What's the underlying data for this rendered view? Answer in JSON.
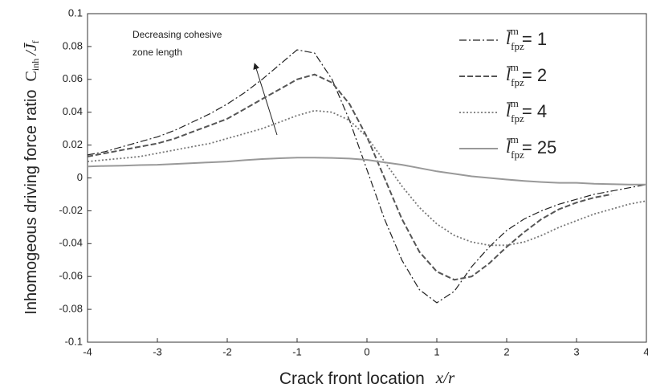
{
  "chart_data": {
    "type": "line",
    "ylabel": "Inhomogeous driving force ratio",
    "ylabel_formula": {
      "base1": "C",
      "sub1": "inh",
      "base2": "/J̄",
      "sub2": "f"
    },
    "xlabel": "Crack front location",
    "xlabel_var": "x/r",
    "annotation": [
      "Decreasing cohesive",
      "zone length"
    ],
    "legend_symbol": {
      "base": "l̄",
      "sub": "fpz",
      "sup": "m"
    },
    "x": [
      -4,
      -3.75,
      -3.5,
      -3.25,
      -3,
      -2.75,
      -2.5,
      -2.25,
      -2,
      -1.75,
      -1.5,
      -1.25,
      -1,
      -0.75,
      -0.5,
      -0.25,
      0,
      0.25,
      0.5,
      0.75,
      1,
      1.25,
      1.5,
      1.75,
      2,
      2.25,
      2.5,
      2.75,
      3,
      3.25,
      3.5,
      3.75,
      4
    ],
    "series": [
      {
        "name": "= 1",
        "color": "#222222",
        "line_style": "dashdot",
        "values": [
          0.014,
          0.016,
          0.019,
          0.022,
          0.025,
          0.029,
          0.034,
          0.039,
          0.045,
          0.052,
          0.06,
          0.069,
          0.078,
          0.076,
          0.06,
          0.035,
          0.005,
          -0.025,
          -0.05,
          -0.068,
          -0.076,
          -0.069,
          -0.054,
          -0.042,
          -0.032,
          -0.025,
          -0.02,
          -0.016,
          -0.013,
          -0.01,
          -0.008,
          -0.006,
          -0.004
        ]
      },
      {
        "name": "= 2",
        "color": "#555555",
        "line_style": "dashed",
        "values": [
          0.013,
          0.015,
          0.017,
          0.019,
          0.021,
          0.024,
          0.028,
          0.032,
          0.036,
          0.042,
          0.048,
          0.054,
          0.06,
          0.063,
          0.058,
          0.045,
          0.025,
          0.0,
          -0.025,
          -0.045,
          -0.057,
          -0.062,
          -0.06,
          -0.052,
          -0.042,
          -0.033,
          -0.025,
          -0.019,
          -0.015,
          -0.012,
          -0.01,
          null,
          null
        ]
      },
      {
        "name": "= 4",
        "color": "#777777",
        "line_style": "dotted",
        "values": [
          0.01,
          0.011,
          0.012,
          0.013,
          0.015,
          0.017,
          0.019,
          0.021,
          0.024,
          0.027,
          0.03,
          0.034,
          0.038,
          0.041,
          0.04,
          0.035,
          0.025,
          0.01,
          -0.005,
          -0.018,
          -0.028,
          -0.035,
          -0.039,
          -0.041,
          -0.041,
          -0.039,
          -0.035,
          -0.03,
          -0.026,
          -0.022,
          -0.019,
          -0.016,
          -0.014
        ]
      },
      {
        "name": "= 25",
        "color": "#999999",
        "line_style": "solid",
        "values": [
          0.007,
          0.0073,
          0.0075,
          0.0078,
          0.008,
          0.0085,
          0.009,
          0.0095,
          0.01,
          0.0108,
          0.0115,
          0.012,
          0.0123,
          0.0123,
          0.0122,
          0.0118,
          0.011,
          0.0095,
          0.008,
          0.006,
          0.004,
          0.0025,
          0.001,
          0.0,
          -0.001,
          -0.0018,
          -0.0025,
          -0.003,
          -0.003,
          -0.0035,
          -0.0038,
          -0.004,
          -0.004
        ]
      }
    ],
    "xlim": [
      -4,
      4
    ],
    "xticks": [
      -4,
      -3,
      -2,
      -1,
      0,
      1,
      2,
      3,
      4
    ],
    "ylim": [
      -0.1,
      0.1
    ],
    "yticks": [
      -0.1,
      -0.08,
      -0.06,
      -0.04,
      -0.02,
      0,
      0.02,
      0.04,
      0.06,
      0.08,
      0.1
    ],
    "grid": false
  }
}
